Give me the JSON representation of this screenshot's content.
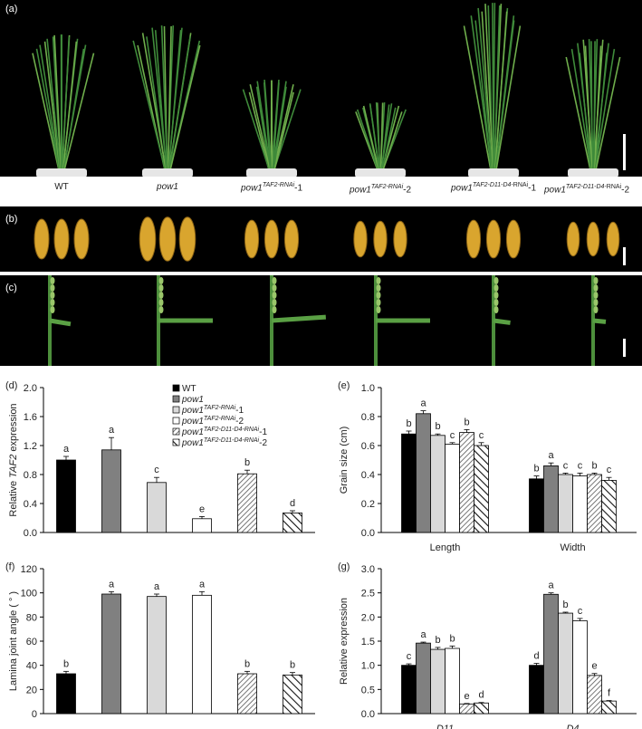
{
  "panel_labels": {
    "a": "(a)",
    "b": "(b)",
    "c": "(c)",
    "d": "(d)",
    "e": "(e)",
    "f": "(f)",
    "g": "(g)"
  },
  "genotypes": {
    "wt": "WT",
    "pow1": "pow1",
    "rnai_prefix": "pow1",
    "rnai_sup": "TAF2-RNAi",
    "rnai1_suffix": "-1",
    "rnai2_suffix": "-2",
    "d11_sup_a": "TAF2-",
    "d11_sup_b": "D11-D4",
    "d11_sup_c": "-RNAi",
    "d11_1_suffix": "-1",
    "d11_2_suffix": "-2"
  },
  "colors": {
    "wt": "#000000",
    "pow1": "#808080",
    "rnai1": "#d9d9d9",
    "rnai2": "#ffffff",
    "d11_1": "hatch-dense",
    "d11_2": "hatch-bold"
  },
  "chart_data": [
    {
      "id": "d",
      "type": "bar",
      "ylabel_pre": "Relative ",
      "ylabel_it": "TAF2",
      "ylabel_post": " expression",
      "ylim": [
        0,
        2.0
      ],
      "yticks": [
        "0.0",
        "0.4",
        "0.8",
        "1.2",
        "1.6",
        "2.0"
      ],
      "categories": [
        "WT",
        "pow1",
        "pow1 TAF2-RNAi-1",
        "pow1 TAF2-RNAi-2",
        "pow1 TAF2-D11-D4-RNAi-1",
        "pow1 TAF2-D11-D4-RNAi-2"
      ],
      "values": [
        1.0,
        1.14,
        0.69,
        0.19,
        0.81,
        0.27
      ],
      "errors": [
        0.05,
        0.17,
        0.07,
        0.03,
        0.05,
        0.03
      ],
      "letters": [
        "a",
        "a",
        "c",
        "e",
        "b",
        "d"
      ],
      "legend": [
        {
          "pre": "WT",
          "it": "",
          "sup": "",
          "post": ""
        },
        {
          "pre": "",
          "it": "pow1",
          "sup": "",
          "post": ""
        },
        {
          "pre": "",
          "it": "pow1",
          "sup": "TAF2-RNAi",
          "post": "-1"
        },
        {
          "pre": "",
          "it": "pow1",
          "sup": "TAF2-RNAi",
          "post": "-2"
        },
        {
          "pre": "",
          "it": "pow1",
          "sup": "TAF2-D11-D4-RNAi",
          "post": "-1"
        },
        {
          "pre": "",
          "it": "pow1",
          "sup": "TAF2-D11-D4-RNAi",
          "post": "-2"
        }
      ]
    },
    {
      "id": "e",
      "type": "bar",
      "ylabel": "Grain size (cm)",
      "ylim": [
        0,
        1.0
      ],
      "yticks": [
        "0.0",
        "0.2",
        "0.4",
        "0.6",
        "0.8",
        "1.0"
      ],
      "groups": [
        "Length",
        "Width"
      ],
      "series": [
        {
          "values": [
            0.68,
            0.37
          ],
          "errors": [
            0.02,
            0.02
          ],
          "letters": [
            "b",
            "b"
          ]
        },
        {
          "values": [
            0.82,
            0.46
          ],
          "errors": [
            0.02,
            0.02
          ],
          "letters": [
            "a",
            "a"
          ]
        },
        {
          "values": [
            0.67,
            0.4
          ],
          "errors": [
            0.01,
            0.01
          ],
          "letters": [
            "b",
            "c"
          ]
        },
        {
          "values": [
            0.61,
            0.39
          ],
          "errors": [
            0.01,
            0.02
          ],
          "letters": [
            "c",
            "c"
          ]
        },
        {
          "values": [
            0.69,
            0.4
          ],
          "errors": [
            0.02,
            0.01
          ],
          "letters": [
            "b",
            "b"
          ]
        },
        {
          "values": [
            0.6,
            0.36
          ],
          "errors": [
            0.02,
            0.02
          ],
          "letters": [
            "c",
            "c"
          ]
        }
      ]
    },
    {
      "id": "f",
      "type": "bar",
      "ylabel": "Lamina joint angle ( ° )",
      "ylim": [
        0,
        120
      ],
      "yticks": [
        "0",
        "20",
        "40",
        "60",
        "80",
        "100",
        "120"
      ],
      "values": [
        33,
        99,
        97,
        98,
        33,
        32
      ],
      "errors": [
        2,
        2,
        2,
        3,
        2,
        2
      ],
      "letters": [
        "b",
        "a",
        "a",
        "a",
        "b",
        "b"
      ]
    },
    {
      "id": "g",
      "type": "bar",
      "ylabel": "Relative expression",
      "ylim": [
        0,
        3.0
      ],
      "yticks": [
        "0.0",
        "0.5",
        "1.0",
        "1.5",
        "2.0",
        "2.5",
        "3.0"
      ],
      "groups": [
        "D11",
        "D4"
      ],
      "series": [
        {
          "values": [
            1.0,
            1.0
          ],
          "errors": [
            0.03,
            0.04
          ],
          "letters": [
            "c",
            "d"
          ]
        },
        {
          "values": [
            1.46,
            2.47
          ],
          "errors": [
            0.02,
            0.03
          ],
          "letters": [
            "a",
            "a"
          ]
        },
        {
          "values": [
            1.33,
            2.08
          ],
          "errors": [
            0.04,
            0.02
          ],
          "letters": [
            "b",
            "b"
          ]
        },
        {
          "values": [
            1.35,
            1.92
          ],
          "errors": [
            0.05,
            0.05
          ],
          "letters": [
            "b",
            "c"
          ]
        },
        {
          "values": [
            0.2,
            0.79
          ],
          "errors": [
            0.01,
            0.04
          ],
          "letters": [
            "e",
            "e"
          ]
        },
        {
          "values": [
            0.22,
            0.26
          ],
          "errors": [
            0.01,
            0.01
          ],
          "letters": [
            "d",
            "f"
          ]
        }
      ]
    }
  ]
}
